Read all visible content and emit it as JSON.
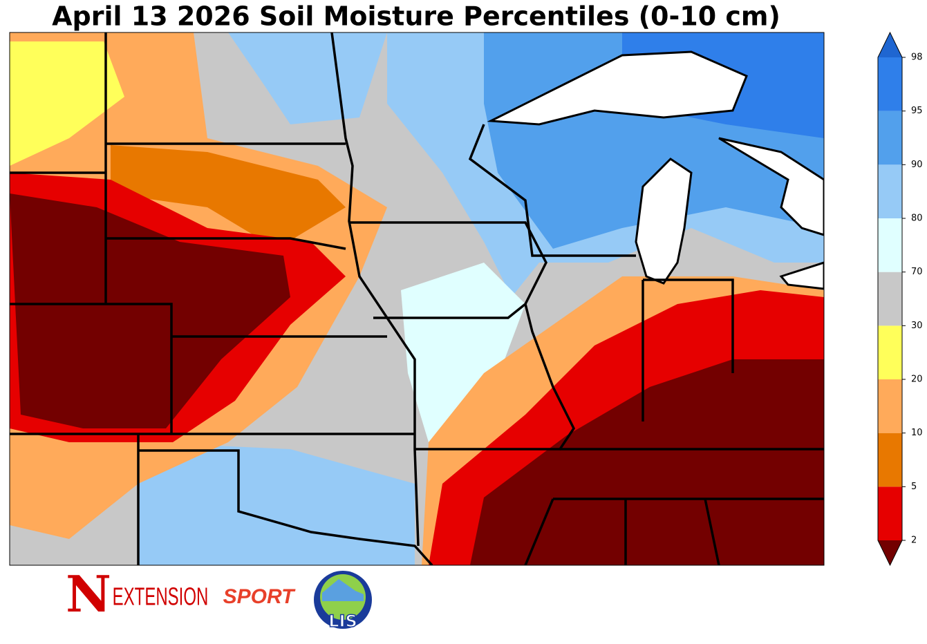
{
  "title": "April 13 2026 Soil Moisture Percentiles (0-10 cm)",
  "colorbar": {
    "ticks": [
      2,
      5,
      10,
      20,
      30,
      70,
      80,
      90,
      95,
      98
    ],
    "under_color": "#730000",
    "over_color": "#1f66d1",
    "colors": [
      "#e60000",
      "#e87800",
      "#ffaa5a",
      "#ffff5a",
      "#c8c8c8",
      "#e0ffff",
      "#96caf6",
      "#52a0ec",
      "#2f7fea"
    ]
  },
  "logos": {
    "n": "N",
    "extension": "EXTENSION",
    "sport": "SPORT",
    "lis": "LIS"
  }
}
